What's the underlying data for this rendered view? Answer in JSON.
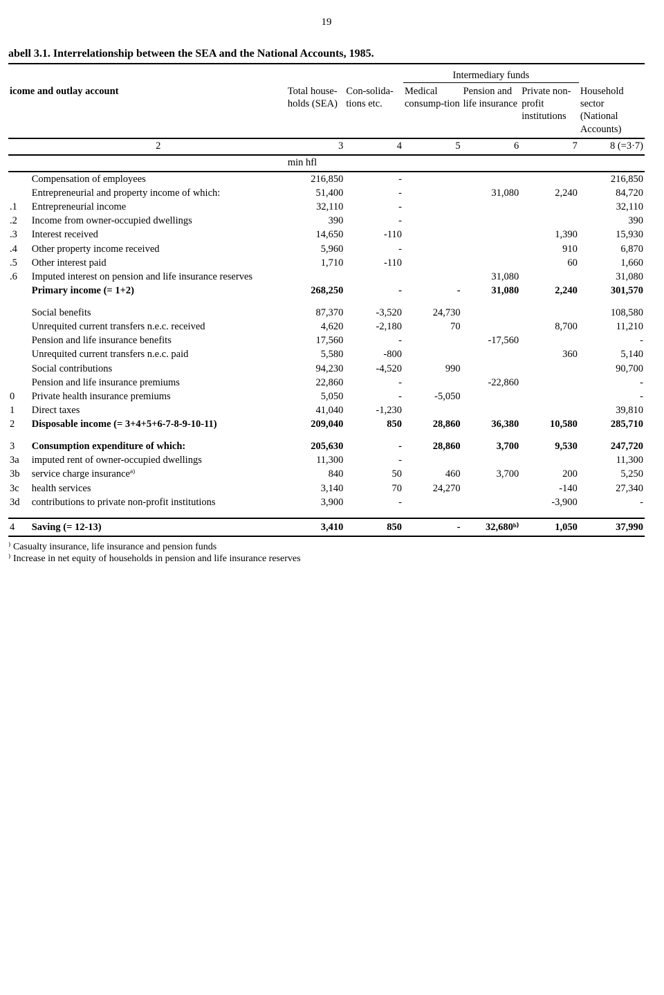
{
  "page_number": "19",
  "title": "abell 3.1. Interrelationship between the SEA and the National Accounts, 1985.",
  "intermediary_label": "Intermediary funds",
  "account_label": "icome and outlay account",
  "col_headers": {
    "c3": "Total house-holds (SEA)",
    "c4": "Con-solida-tions etc.",
    "c5": "Medical consump-tion",
    "c6": "Pension and life insurance",
    "c7": "Private non-profit institutions",
    "c8": "Household sector (National Accounts)"
  },
  "col_nums": {
    "n2": "2",
    "n3": "3",
    "n4": "4",
    "n5": "5",
    "n6": "6",
    "n7": "7",
    "n8": "8 (=3·7)"
  },
  "unit": "min hfl",
  "rows": [
    {
      "id": "",
      "label": "Compensation of employees",
      "c3": "216,850",
      "c4": "-",
      "c5": "",
      "c6": "",
      "c7": "",
      "c8": "216,850"
    },
    {
      "id": "",
      "label": "Entrepreneurial and property income of which:",
      "c3": "51,400",
      "c4": "-",
      "c5": "",
      "c6": "31,080",
      "c7": "2,240",
      "c8": "84,720"
    },
    {
      "id": ".1",
      "label": "Entrepreneurial income",
      "c3": "32,110",
      "c4": "-",
      "c5": "",
      "c6": "",
      "c7": "",
      "c8": "32,110"
    },
    {
      "id": ".2",
      "label": "Income from owner-occupied dwellings",
      "c3": "390",
      "c4": "-",
      "c5": "",
      "c6": "",
      "c7": "",
      "c8": "390"
    },
    {
      "id": ".3",
      "label": "Interest received",
      "c3": "14,650",
      "c4": "-110",
      "c5": "",
      "c6": "",
      "c7": "1,390",
      "c8": "15,930"
    },
    {
      "id": ".4",
      "label": "Other property income received",
      "c3": "5,960",
      "c4": "-",
      "c5": "",
      "c6": "",
      "c7": "910",
      "c8": "6,870"
    },
    {
      "id": ".5",
      "label": "Other interest paid",
      "c3": "1,710",
      "c4": "-110",
      "c5": "",
      "c6": "",
      "c7": "60",
      "c8": "1,660"
    },
    {
      "id": ".6",
      "label": "Imputed interest on pension and life insurance reserves",
      "c3": "",
      "c4": "",
      "c5": "",
      "c6": "31,080",
      "c7": "",
      "c8": "31,080"
    },
    {
      "id": "",
      "label": "Primary income (= 1+2)",
      "bold": true,
      "c3": "268,250",
      "c4": "-",
      "c5": "-",
      "c6": "31,080",
      "c7": "2,240",
      "c8": "301,570"
    }
  ],
  "rows2": [
    {
      "id": "",
      "label": "Social benefits",
      "c3": "87,370",
      "c4": "-3,520",
      "c5": "24,730",
      "c6": "",
      "c7": "",
      "c8": "108,580"
    },
    {
      "id": "",
      "label": "Unrequited current transfers n.e.c. received",
      "c3": "4,620",
      "c4": "-2,180",
      "c5": "70",
      "c6": "",
      "c7": "8,700",
      "c8": "11,210"
    },
    {
      "id": "",
      "label": "Pension and life insurance benefits",
      "c3": "17,560",
      "c4": "-",
      "c5": "",
      "c6": "-17,560",
      "c7": "",
      "c8": "-"
    },
    {
      "id": "",
      "label": "Unrequited current transfers n.e.c. paid",
      "c3": "5,580",
      "c4": "-800",
      "c5": "",
      "c6": "",
      "c7": "360",
      "c8": "5,140"
    },
    {
      "id": "",
      "label": "Social contributions",
      "c3": "94,230",
      "c4": "-4,520",
      "c5": "990",
      "c6": "",
      "c7": "",
      "c8": "90,700"
    },
    {
      "id": "",
      "label": "Pension and life insurance premiums",
      "c3": "22,860",
      "c4": "-",
      "c5": "",
      "c6": "-22,860",
      "c7": "",
      "c8": "-"
    },
    {
      "id": "0",
      "label": "Private health insurance premiums",
      "c3": "5,050",
      "c4": "-",
      "c5": "-5,050",
      "c6": "",
      "c7": "",
      "c8": "-"
    },
    {
      "id": "1",
      "label": "Direct taxes",
      "c3": "41,040",
      "c4": "-1,230",
      "c5": "",
      "c6": "",
      "c7": "",
      "c8": "39,810"
    },
    {
      "id": "2",
      "label": "Disposable income (= 3+4+5+6-7-8-9-10-11)",
      "bold": true,
      "c3": "209,040",
      "c4": "850",
      "c5": "28,860",
      "c6": "36,380",
      "c7": "10,580",
      "c8": "285,710"
    }
  ],
  "rows3": [
    {
      "id": "3",
      "label": "Consumption expenditure of which:",
      "bold": true,
      "c3": "205,630",
      "c4": "-",
      "c5": "28,860",
      "c6": "3,700",
      "c7": "9,530",
      "c8": "247,720"
    },
    {
      "id": "3a",
      "label": "imputed rent of owner-occupied dwellings",
      "c3": "11,300",
      "c4": "-",
      "c5": "",
      "c6": "",
      "c7": "",
      "c8": "11,300"
    },
    {
      "id": "3b",
      "label": "service charge insuranceª⁾",
      "c3": "840",
      "c4": "50",
      "c5": "460",
      "c6": "3,700",
      "c7": "200",
      "c8": "5,250"
    },
    {
      "id": "3c",
      "label": "health services",
      "c3": "3,140",
      "c4": "70",
      "c5": "24,270",
      "c6": "",
      "c7": "-140",
      "c8": "27,340"
    },
    {
      "id": "3d",
      "label": "contributions to private non-profit institutions",
      "c3": "3,900",
      "c4": "-",
      "c5": "",
      "c6": "",
      "c7": "-3,900",
      "c8": "-"
    }
  ],
  "rows4": [
    {
      "id": "4",
      "label": "Saving (= 12-13)",
      "bold": true,
      "c3": "3,410",
      "c4": "850",
      "c5": "-",
      "c6": "32,680ᵇ⁾",
      "c7": "1,050",
      "c8": "37,990"
    }
  ],
  "footnotes": [
    "⁾ Casualty insurance, life insurance and pension funds",
    "⁾ Increase in net equity of households in pension and life insurance reserves"
  ]
}
